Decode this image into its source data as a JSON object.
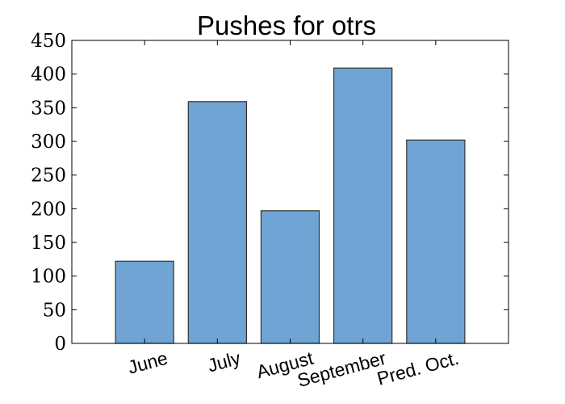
{
  "chart_data": {
    "type": "bar",
    "title": "Pushes for otrs",
    "xlabel": "",
    "ylabel": "",
    "categories": [
      "June",
      "July",
      "August",
      "September",
      "Pred. Oct."
    ],
    "values": [
      122,
      359,
      197,
      409,
      302
    ],
    "ylim": [
      0,
      450
    ],
    "yticks": [
      "0",
      "50",
      "100",
      "150",
      "200",
      "250",
      "300",
      "350",
      "400",
      "450"
    ],
    "grid": false,
    "legend": "none",
    "bar_color": "#6fa4d4",
    "bar_edge_color": "#333333",
    "axis_color": "#000000"
  }
}
